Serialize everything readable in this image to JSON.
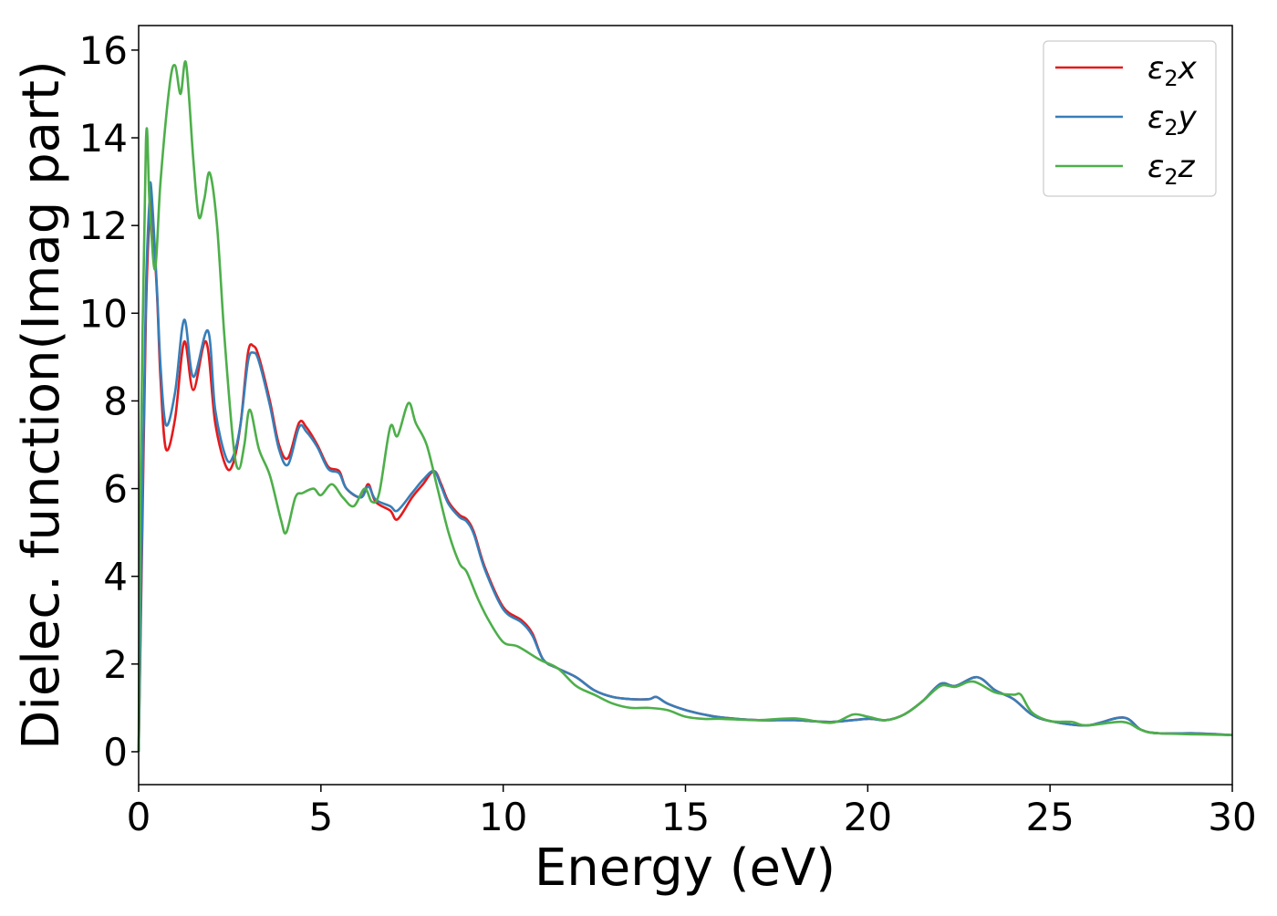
{
  "chart_data": {
    "type": "line",
    "title": "",
    "xlabel": "Energy (eV)",
    "ylabel": "Dielec. function(Imag part)",
    "xlim": [
      0,
      30
    ],
    "ylim": [
      -0.75,
      16.56
    ],
    "xticks": [
      0,
      5,
      10,
      15,
      20,
      25,
      30
    ],
    "yticks": [
      0,
      2,
      4,
      6,
      8,
      10,
      12,
      14,
      16
    ],
    "grid": false,
    "legend_position": "top-right",
    "series": [
      {
        "name": "ε₂x",
        "label_main": "ε",
        "label_sub": "2",
        "label_tail": "x",
        "color": "#e41a1c",
        "x": [
          0,
          0.1,
          0.2,
          0.3,
          0.35,
          0.5,
          0.6,
          0.75,
          1.0,
          1.25,
          1.5,
          1.85,
          2.1,
          2.4,
          2.6,
          2.8,
          3.0,
          3.15,
          3.3,
          3.6,
          3.85,
          4.1,
          4.4,
          4.6,
          4.9,
          5.2,
          5.5,
          5.7,
          6.1,
          6.3,
          6.5,
          6.9,
          7.1,
          7.5,
          7.8,
          8.1,
          8.3,
          8.5,
          8.8,
          9.0,
          9.2,
          9.5,
          10.0,
          10.5,
          10.8,
          11.1,
          11.5,
          12.0,
          12.5,
          13.0,
          13.5,
          14.0,
          14.2,
          14.5,
          15.0,
          15.5,
          16,
          17,
          18,
          19,
          20,
          20.5,
          21,
          21.5,
          22,
          22.4,
          23,
          23.5,
          24,
          24.5,
          25,
          26,
          27,
          27.5,
          28,
          29,
          30
        ],
        "y": [
          0,
          5,
          10,
          12.3,
          12.5,
          10.5,
          8.5,
          6.9,
          7.6,
          9.35,
          8.25,
          9.35,
          7.5,
          6.5,
          6.6,
          7.5,
          9.1,
          9.25,
          9.0,
          8.0,
          7.0,
          6.7,
          7.5,
          7.4,
          7.0,
          6.5,
          6.4,
          6.0,
          5.8,
          6.1,
          5.7,
          5.5,
          5.3,
          5.8,
          6.1,
          6.4,
          6.1,
          5.7,
          5.4,
          5.3,
          5.0,
          4.2,
          3.3,
          3.0,
          2.7,
          2.1,
          1.9,
          1.7,
          1.4,
          1.25,
          1.2,
          1.2,
          1.25,
          1.1,
          0.95,
          0.85,
          0.78,
          0.72,
          0.72,
          0.68,
          0.75,
          0.72,
          0.85,
          1.15,
          1.55,
          1.5,
          1.7,
          1.4,
          1.2,
          0.85,
          0.7,
          0.6,
          0.78,
          0.5,
          0.42,
          0.42,
          0.38
        ]
      },
      {
        "name": "ε₂y",
        "label_main": "ε",
        "label_sub": "2",
        "label_tail": "y",
        "color": "#377eb8",
        "x": [
          0,
          0.1,
          0.2,
          0.3,
          0.35,
          0.5,
          0.6,
          0.75,
          1.0,
          1.25,
          1.5,
          1.9,
          2.1,
          2.4,
          2.6,
          2.8,
          3.0,
          3.15,
          3.3,
          3.6,
          3.85,
          4.1,
          4.4,
          4.6,
          4.9,
          5.2,
          5.5,
          5.7,
          6.1,
          6.3,
          6.5,
          6.9,
          7.1,
          7.5,
          7.8,
          8.1,
          8.3,
          8.5,
          8.8,
          9.0,
          9.2,
          9.5,
          10.0,
          10.5,
          10.8,
          11.1,
          11.5,
          12.0,
          12.5,
          13.0,
          13.5,
          14.0,
          14.2,
          14.5,
          15.0,
          15.5,
          16,
          17,
          18,
          19,
          20,
          20.5,
          21,
          21.5,
          22,
          22.4,
          23,
          23.5,
          24,
          24.5,
          25,
          26,
          27,
          27.5,
          28,
          29,
          30
        ],
        "y": [
          0,
          5.5,
          10.5,
          12.6,
          12.8,
          10.6,
          8.8,
          7.45,
          8.2,
          9.85,
          8.55,
          9.6,
          7.8,
          6.7,
          6.75,
          7.5,
          8.9,
          9.1,
          8.9,
          7.9,
          6.9,
          6.55,
          7.4,
          7.3,
          6.95,
          6.45,
          6.35,
          6.0,
          5.8,
          6.05,
          5.75,
          5.6,
          5.5,
          5.9,
          6.2,
          6.4,
          6.05,
          5.65,
          5.35,
          5.25,
          4.95,
          4.15,
          3.25,
          2.95,
          2.65,
          2.1,
          1.9,
          1.7,
          1.4,
          1.25,
          1.2,
          1.2,
          1.25,
          1.1,
          0.95,
          0.85,
          0.78,
          0.72,
          0.72,
          0.68,
          0.75,
          0.72,
          0.85,
          1.15,
          1.55,
          1.5,
          1.7,
          1.4,
          1.2,
          0.85,
          0.7,
          0.6,
          0.78,
          0.5,
          0.42,
          0.42,
          0.38
        ]
      },
      {
        "name": "ε₂z",
        "label_main": "ε",
        "label_sub": "2",
        "label_tail": "z",
        "color": "#4daf4a",
        "x": [
          0,
          0.05,
          0.2,
          0.3,
          0.45,
          0.6,
          0.85,
          1.0,
          1.15,
          1.3,
          1.5,
          1.65,
          1.8,
          1.95,
          2.15,
          2.35,
          2.6,
          2.75,
          2.9,
          3.05,
          3.3,
          3.6,
          3.9,
          4.05,
          4.3,
          4.5,
          4.8,
          5.0,
          5.3,
          5.6,
          5.9,
          6.2,
          6.4,
          6.6,
          6.9,
          7.1,
          7.4,
          7.6,
          7.9,
          8.2,
          8.5,
          8.8,
          9.0,
          9.3,
          9.6,
          10.0,
          10.4,
          11.0,
          11.5,
          12.0,
          12.5,
          13.0,
          13.5,
          14.0,
          14.5,
          15.0,
          15.5,
          16,
          17,
          18,
          19,
          19.6,
          20,
          20.5,
          21,
          21.5,
          22,
          22.4,
          22.9,
          23.5,
          24,
          24.2,
          24.5,
          25,
          25.6,
          26,
          27,
          27.5,
          28,
          30
        ],
        "y": [
          0,
          6,
          13.9,
          12.5,
          11.0,
          13.0,
          15.2,
          15.65,
          15.0,
          15.7,
          13.5,
          12.2,
          12.6,
          13.2,
          12.0,
          9.5,
          7.0,
          6.45,
          7.0,
          7.8,
          6.9,
          6.3,
          5.3,
          5.0,
          5.8,
          5.9,
          6.0,
          5.85,
          6.1,
          5.8,
          5.6,
          6.0,
          5.7,
          5.9,
          7.4,
          7.2,
          7.95,
          7.5,
          7.0,
          6.0,
          5.0,
          4.3,
          4.1,
          3.5,
          3.0,
          2.5,
          2.4,
          2.1,
          1.9,
          1.5,
          1.3,
          1.1,
          1.0,
          1.0,
          0.95,
          0.8,
          0.75,
          0.75,
          0.72,
          0.76,
          0.66,
          0.85,
          0.8,
          0.72,
          0.85,
          1.15,
          1.5,
          1.48,
          1.6,
          1.35,
          1.3,
          1.3,
          0.9,
          0.7,
          0.68,
          0.6,
          0.68,
          0.5,
          0.42,
          0.38
        ]
      }
    ]
  }
}
